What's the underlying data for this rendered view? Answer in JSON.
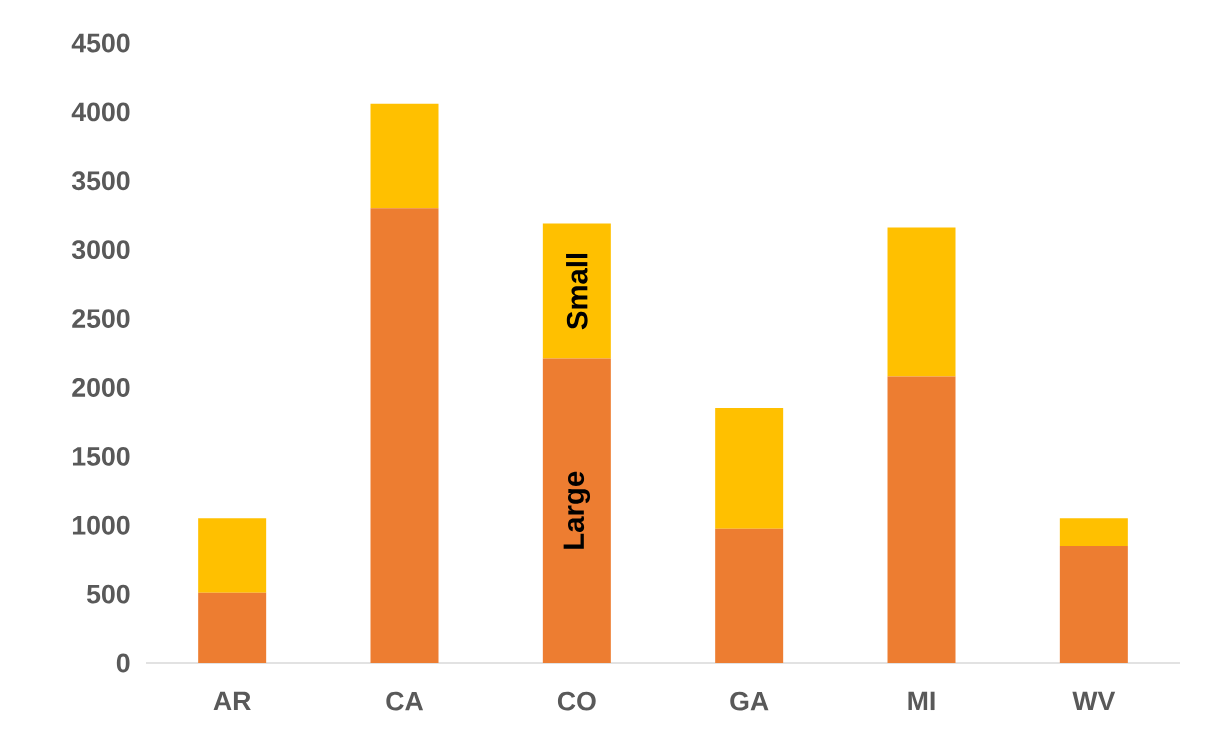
{
  "chart_data": {
    "type": "bar",
    "stacked": true,
    "categories": [
      "AR",
      "CA",
      "CO",
      "GA",
      "MI",
      "WV"
    ],
    "series": [
      {
        "name": "Large",
        "color": "#ed7d31",
        "values": [
          510,
          3300,
          2210,
          975,
          2080,
          850
        ]
      },
      {
        "name": "Small",
        "color": "#ffc000",
        "values": [
          540,
          760,
          980,
          875,
          1080,
          200
        ]
      }
    ],
    "ylim": [
      0,
      4500
    ],
    "yticks": [
      0,
      500,
      1000,
      1500,
      2000,
      2500,
      3000,
      3500,
      4000,
      4500
    ]
  }
}
